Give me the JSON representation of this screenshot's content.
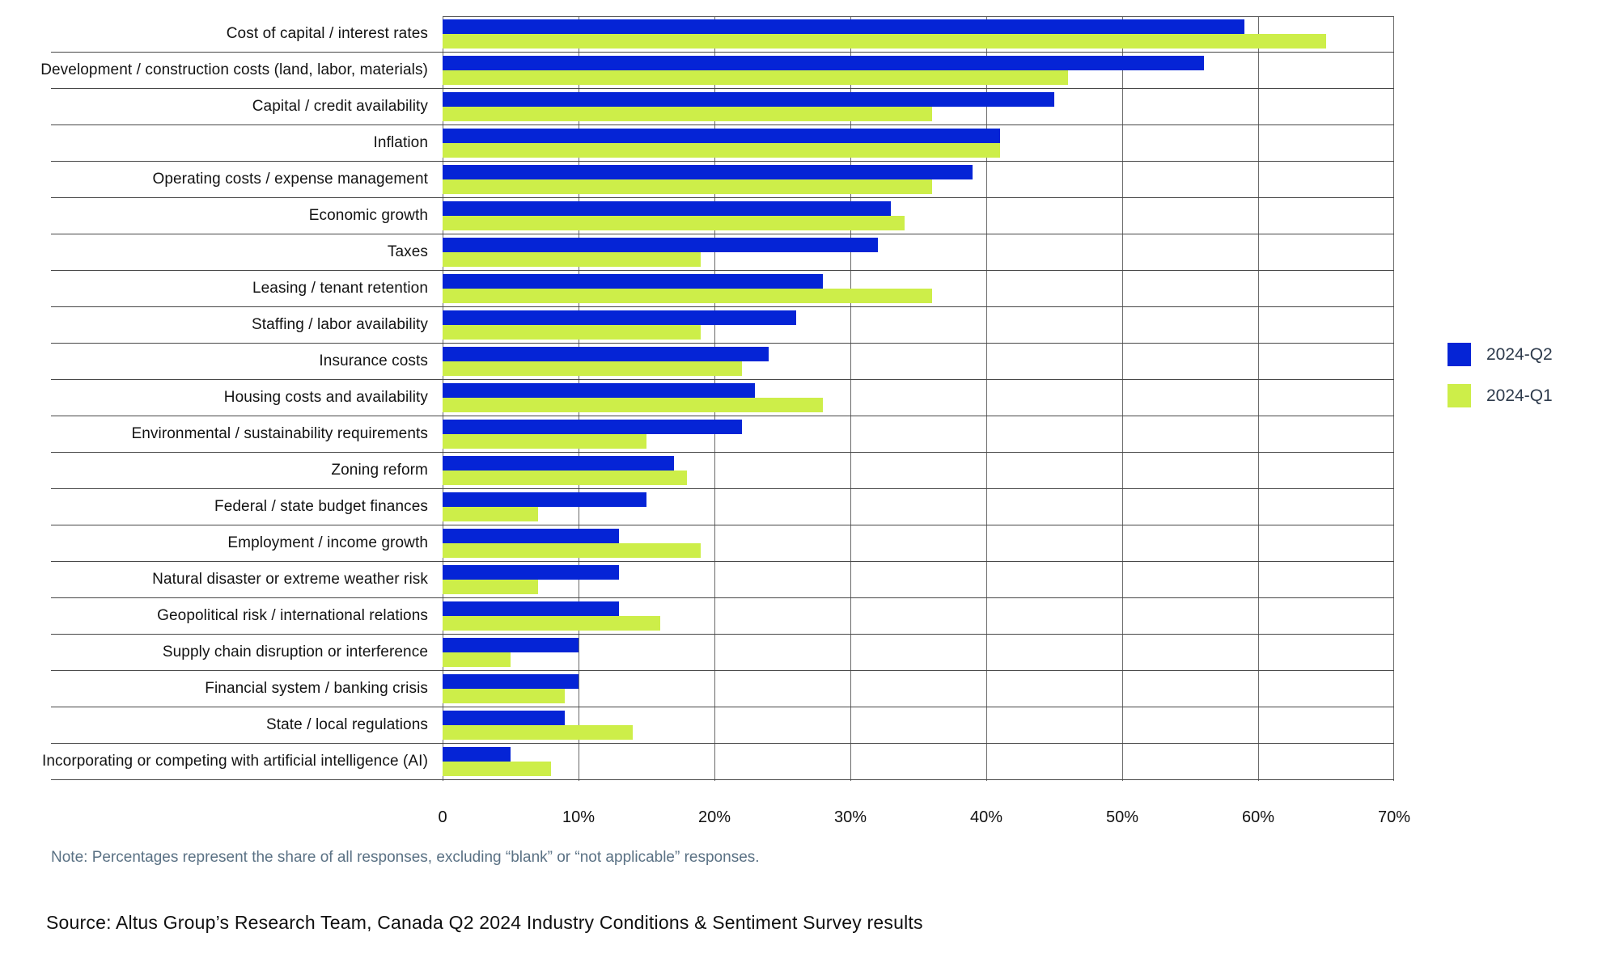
{
  "chart_data": {
    "type": "bar",
    "orientation": "horizontal",
    "title": "",
    "xlabel": "",
    "ylabel": "",
    "xlim": [
      0,
      70
    ],
    "x_ticks": [
      "0",
      "10%",
      "20%",
      "30%",
      "40%",
      "50%",
      "60%",
      "70%"
    ],
    "grid": true,
    "legend_position": "right",
    "categories": [
      "Cost of capital / interest rates",
      "Development / construction costs (land, labor, materials)",
      "Capital / credit availability",
      "Inflation",
      "Operating costs / expense management",
      "Economic growth",
      "Taxes",
      "Leasing / tenant retention",
      "Staffing / labor availability",
      "Insurance costs",
      "Housing costs and availability",
      "Environmental / sustainability requirements",
      "Zoning reform",
      "Federal / state budget finances",
      "Employment / income growth",
      "Natural disaster or extreme weather risk",
      "Geopolitical risk / international relations",
      "Supply chain disruption or interference",
      "Financial system / banking crisis",
      "State / local regulations",
      "Incorporating or competing with artificial intelligence (AI)"
    ],
    "series": [
      {
        "name": "2024-Q2",
        "color": "#0524d6",
        "values": [
          59,
          56,
          45,
          41,
          39,
          33,
          32,
          28,
          26,
          24,
          23,
          22,
          17,
          15,
          13,
          13,
          13,
          10,
          10,
          9,
          5
        ]
      },
      {
        "name": "2024-Q1",
        "color": "#cdee49",
        "values": [
          65,
          46,
          36,
          41,
          36,
          34,
          19,
          36,
          19,
          22,
          28,
          15,
          18,
          7,
          19,
          7,
          16,
          5,
          9,
          14,
          8
        ]
      }
    ]
  },
  "note": "Note: Percentages represent the share of all responses, excluding “blank” or “not applicable” responses.",
  "source": "Source: Altus Group’s Research Team, Canada Q2 2024 Industry Conditions & Sentiment Survey results"
}
